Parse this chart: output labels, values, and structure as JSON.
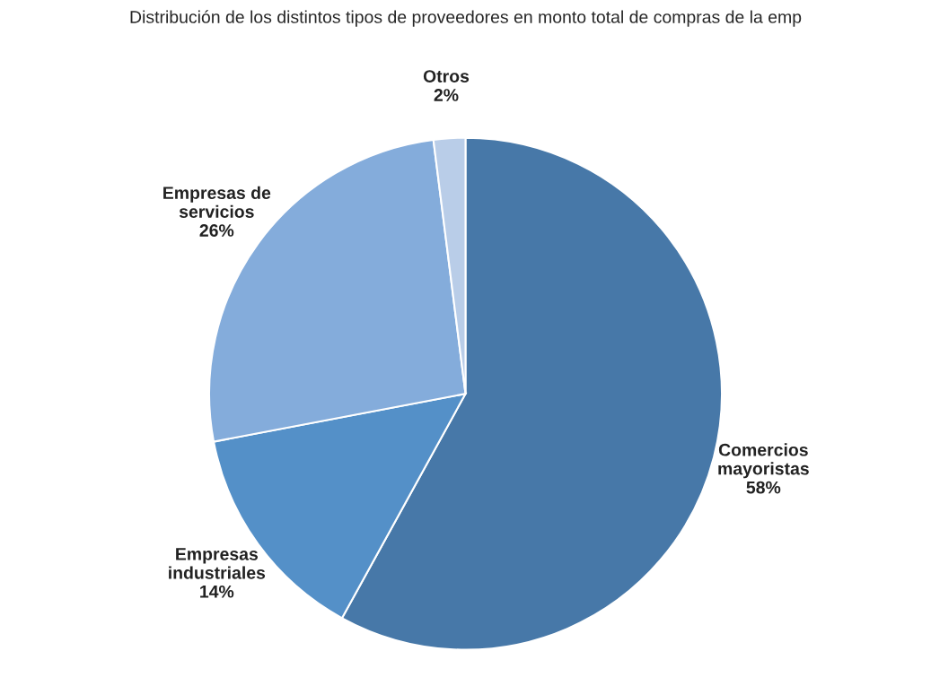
{
  "chart_data": {
    "type": "pie",
    "title": "Distribución de los distintos tipos de proveedores en monto total de compras de la emp",
    "categories": [
      "Comercios\nmayoristas",
      "Empresas\nindustriales",
      "Empresas de\nservicios",
      "Otros"
    ],
    "values": [
      58,
      14,
      26,
      2
    ],
    "value_labels": [
      "58%",
      "14%",
      "26%",
      "2%"
    ],
    "colors": [
      "#4778a8",
      "#5490c8",
      "#84acdb",
      "#b9cde8"
    ],
    "legend": false
  }
}
